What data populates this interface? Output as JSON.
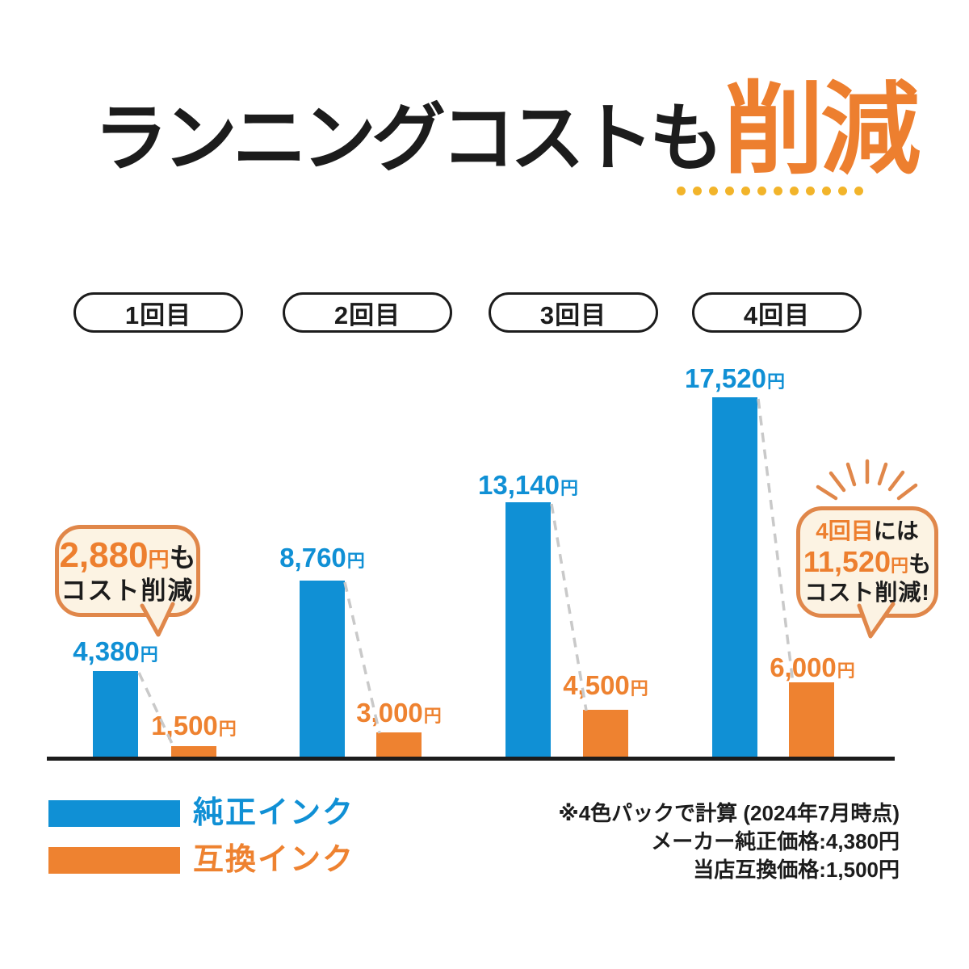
{
  "title": {
    "main": "ランニングコストも",
    "accent": "削減",
    "underline_dot_count": 12
  },
  "rounds": [
    {
      "label": "1回目"
    },
    {
      "label": "2回目"
    },
    {
      "label": "3回目"
    },
    {
      "label": "4回目"
    }
  ],
  "bars": {
    "unit": "円",
    "genuine": [
      {
        "amount": "4,380"
      },
      {
        "amount": "8,760"
      },
      {
        "amount": "13,140"
      },
      {
        "amount": "17,520"
      }
    ],
    "compatible": [
      {
        "amount": "1,500"
      },
      {
        "amount": "3,000"
      },
      {
        "amount": "4,500"
      },
      {
        "amount": "6,000"
      }
    ]
  },
  "bubble_first": {
    "amount": "2,880",
    "unit": "円",
    "suffix": "も",
    "line2": "コスト削減"
  },
  "bubble_fourth": {
    "lead_accent": "4回目",
    "lead_rest": "には",
    "amount": "11,520",
    "unit": "円",
    "suffix": "も",
    "line3": "コスト削減!"
  },
  "legend": {
    "genuine": {
      "label": "純正インク",
      "color": "#1090d5"
    },
    "compatible": {
      "label": "互換インク",
      "color": "#ee8230"
    }
  },
  "footnote": {
    "line1": "※4色パックで計算 (2024年7月時点)",
    "line2": "メーカー純正価格:4,380円",
    "line3": "当店互換価格:1,500円"
  },
  "colors": {
    "genuine_blue": "#1090d5",
    "compatible_orange": "#ee8230",
    "accent_orange": "#ed7f2f",
    "bubble_border": "#e0874a",
    "bubble_fill": "#fcf3e3",
    "underline_yellow": "#f2b42a",
    "dash_gray": "#c9c9c9",
    "ink_black": "#1c1c1c"
  },
  "chart_data": {
    "type": "bar",
    "title": "ランニングコストも削減",
    "categories": [
      "1回目",
      "2回目",
      "3回目",
      "4回目"
    ],
    "series": [
      {
        "name": "純正インク",
        "color": "#1090d5",
        "values": [
          4380,
          8760,
          13140,
          17520
        ]
      },
      {
        "name": "互換インク",
        "color": "#ee8230",
        "values": [
          1500,
          3000,
          4500,
          6000
        ]
      }
    ],
    "unit": "円",
    "annotations": [
      "2,880円もコスト削減",
      "4回目には11,520円もコスト削減!"
    ],
    "footnotes": [
      "※4色パックで計算 (2024年7月時点)",
      "メーカー純正価格:4,380円",
      "当店互換価格:1,500円"
    ],
    "legend_position": "bottom-left",
    "grid": false,
    "xlabel": "",
    "ylabel": ""
  }
}
